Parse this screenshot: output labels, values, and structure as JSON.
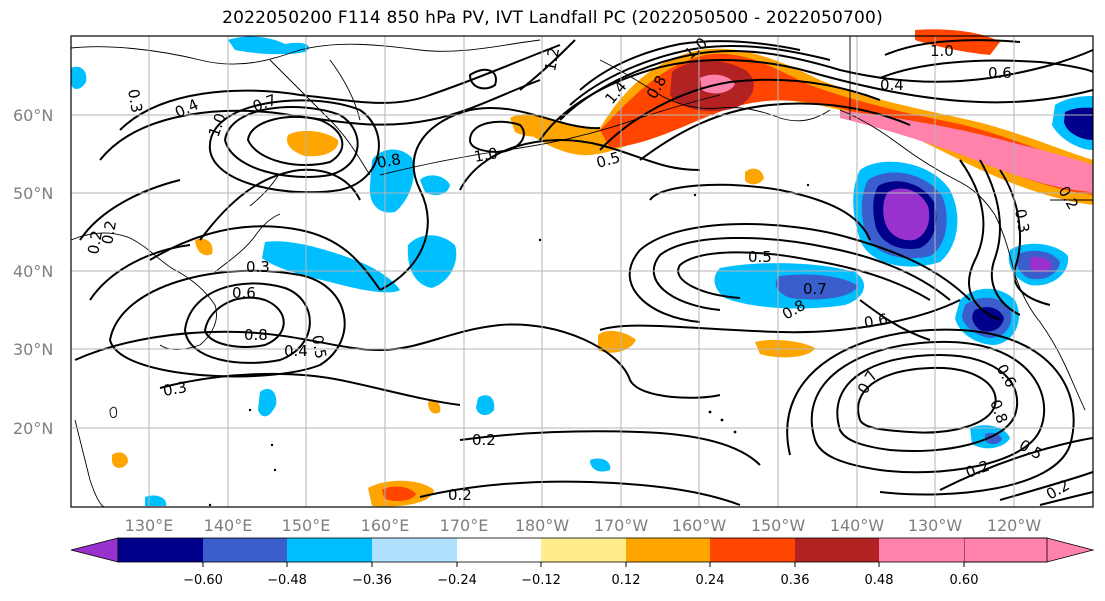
{
  "title": "2022050200 F114 850 hPa PV, IVT Landfall PC (2022050500 - 2022050700)",
  "map": {
    "lat_labels": [
      "60°N",
      "50°N",
      "40°N",
      "30°N",
      "20°N"
    ],
    "lon_labels": [
      "130°E",
      "140°E",
      "150°E",
      "160°E",
      "170°E",
      "180°W",
      "170°W",
      "160°W",
      "150°W",
      "140°W",
      "130°W",
      "120°W"
    ],
    "contour_labels": [
      "0.4",
      "0.7",
      "1.0",
      "0.8",
      "1.0",
      "1.2",
      "1.4",
      "0.8",
      "1.0",
      "1.0",
      "0.4",
      "0.6",
      "0.5",
      "0.2",
      "0.3",
      "0.2",
      "0.3",
      "0.6",
      "0.8",
      "0.5",
      "0.4",
      "0.3",
      "0.2",
      "0.2",
      "0.5",
      "0.7",
      "0.8",
      "0.6",
      "0.7",
      "0.6",
      "0.8",
      "0.5",
      "0.2",
      "0.2",
      "0.3",
      "0.2"
    ]
  },
  "colorbar": {
    "ticks": [
      "−0.60",
      "−0.48",
      "−0.36",
      "−0.24",
      "−0.12",
      "0.12",
      "0.24",
      "0.36",
      "0.48",
      "0.60"
    ],
    "colors": [
      "#9932cc",
      "#00008b",
      "#3a5fcd",
      "#00bfff",
      "#b0e2ff",
      "#ffffff",
      "#ffec8b",
      "#ffa500",
      "#ff4500",
      "#b22222",
      "#ff82ab"
    ]
  }
}
